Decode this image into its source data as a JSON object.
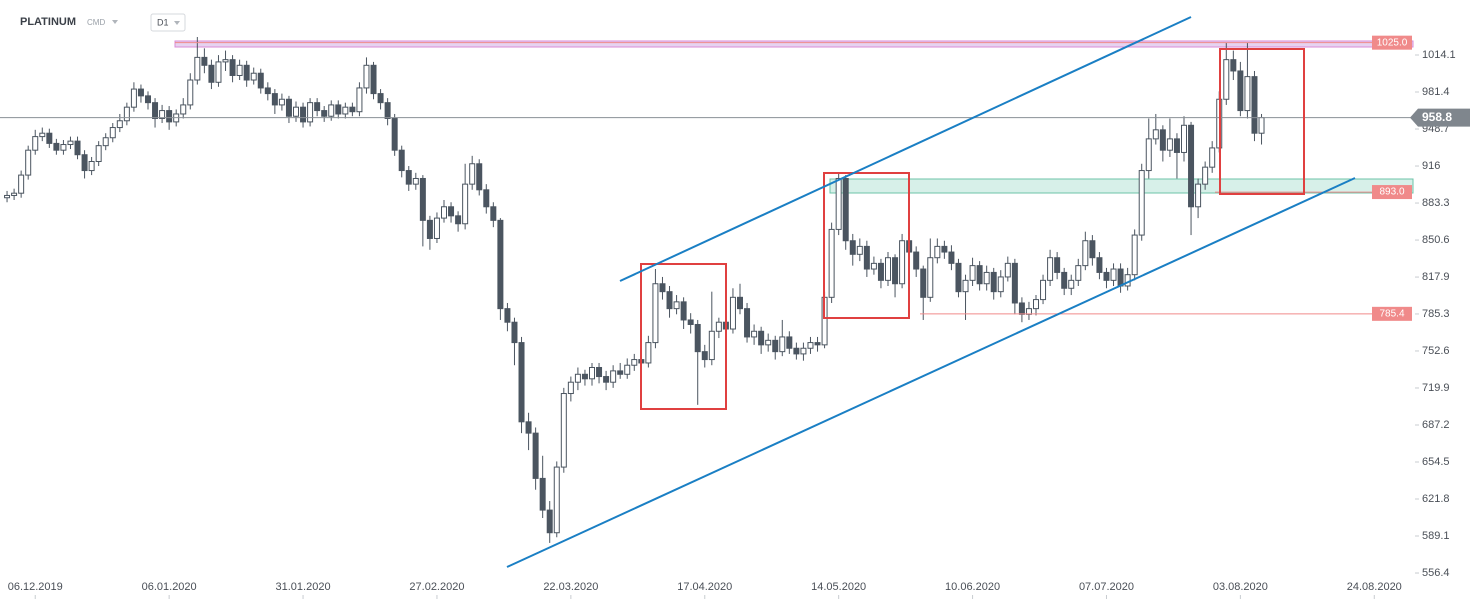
{
  "header": {
    "symbol": "PLATINUM",
    "market": "CMD",
    "interval": "D1"
  },
  "chart_data": {
    "type": "candlestick",
    "open": [
      888,
      890,
      892,
      908,
      930,
      942,
      945,
      936,
      930,
      935,
      938,
      926,
      912,
      920,
      934,
      941,
      950,
      956,
      968,
      984,
      978,
      972,
      958,
      965,
      955,
      962,
      970,
      992,
      1012,
      1005,
      990,
      1008,
      1010,
      996,
      1005,
      992,
      998,
      985,
      980,
      970,
      975,
      960,
      968,
      955,
      972,
      965,
      960,
      970,
      962,
      968,
      964,
      985,
      1005,
      980,
      972,
      958,
      930,
      912,
      900,
      905,
      868,
      852,
      870,
      880,
      872,
      865,
      900,
      918,
      895,
      880,
      868,
      790,
      778,
      760,
      690,
      680,
      640,
      612,
      592,
      650,
      715,
      725,
      732,
      728,
      738,
      730,
      725,
      735,
      732,
      740,
      745,
      742,
      760,
      812,
      805,
      790,
      796,
      780,
      776,
      752,
      745,
      770,
      778,
      772,
      800,
      790,
      765,
      770,
      758,
      762,
      752,
      765,
      755,
      750,
      755,
      760,
      758,
      800,
      860,
      905,
      850,
      838,
      845,
      825,
      830,
      815,
      835,
      812,
      850,
      840,
      825,
      800,
      835,
      845,
      840,
      830,
      805,
      815,
      828,
      812,
      822,
      805,
      818,
      830,
      795,
      785,
      790,
      798,
      815,
      835,
      822,
      808,
      815,
      828,
      850,
      835,
      822,
      815,
      825,
      810,
      820,
      855,
      912,
      940,
      948,
      930,
      940,
      928,
      952,
      880,
      900,
      915,
      932,
      975,
      1010,
      1000,
      965,
      995,
      945
    ],
    "high": [
      894,
      896,
      912,
      934,
      948,
      950,
      949,
      940,
      939,
      942,
      942,
      930,
      924,
      938,
      945,
      954,
      962,
      972,
      990,
      988,
      982,
      976,
      970,
      969,
      966,
      976,
      998,
      1030,
      1020,
      1010,
      1014,
      1018,
      1014,
      1010,
      1009,
      1003,
      1002,
      990,
      984,
      980,
      978,
      973,
      972,
      976,
      976,
      969,
      974,
      974,
      972,
      972,
      990,
      1012,
      1008,
      984,
      976,
      962,
      934,
      916,
      910,
      908,
      872,
      875,
      886,
      884,
      876,
      918,
      925,
      922,
      900,
      884,
      870,
      795,
      782,
      765,
      698,
      685,
      660,
      620,
      655,
      720,
      730,
      738,
      736,
      742,
      742,
      735,
      740,
      742,
      746,
      750,
      758,
      766,
      825,
      818,
      810,
      802,
      800,
      786,
      780,
      758,
      805,
      782,
      785,
      808,
      812,
      795,
      776,
      774,
      768,
      766,
      780,
      770,
      760,
      760,
      765,
      765,
      805,
      866,
      910,
      908,
      856,
      852,
      850,
      836,
      834,
      840,
      838,
      856,
      855,
      845,
      828,
      852,
      852,
      850,
      846,
      834,
      820,
      835,
      832,
      828,
      826,
      824,
      836,
      834,
      800,
      796,
      802,
      820,
      842,
      840,
      826,
      820,
      834,
      858,
      855,
      840,
      826,
      830,
      830,
      826,
      860,
      918,
      958,
      962,
      952,
      958,
      945,
      960,
      955,
      905,
      920,
      938,
      982,
      1025,
      1018,
      1008,
      1025,
      1000,
      962
    ],
    "low": [
      884,
      886,
      888,
      904,
      926,
      938,
      932,
      926,
      926,
      931,
      922,
      905,
      908,
      916,
      930,
      937,
      946,
      952,
      964,
      972,
      966,
      950,
      954,
      948,
      951,
      958,
      966,
      988,
      998,
      984,
      986,
      1000,
      990,
      992,
      986,
      988,
      980,
      974,
      962,
      965,
      954,
      955,
      950,
      951,
      960,
      955,
      956,
      958,
      958,
      960,
      960,
      980,
      975,
      966,
      952,
      925,
      906,
      894,
      895,
      845,
      842,
      848,
      866,
      866,
      858,
      860,
      895,
      890,
      874,
      862,
      780,
      770,
      740,
      680,
      665,
      630,
      605,
      583,
      588,
      645,
      708,
      718,
      722,
      722,
      724,
      718,
      720,
      728,
      728,
      735,
      738,
      738,
      755,
      798,
      782,
      785,
      772,
      768,
      705,
      738,
      740,
      764,
      766,
      768,
      785,
      760,
      758,
      750,
      752,
      745,
      748,
      750,
      745,
      744,
      750,
      752,
      755,
      795,
      855,
      842,
      828,
      832,
      818,
      820,
      808,
      810,
      800,
      808,
      834,
      818,
      780,
      796,
      830,
      834,
      824,
      800,
      780,
      810,
      806,
      806,
      798,
      800,
      814,
      785,
      778,
      780,
      784,
      794,
      810,
      816,
      802,
      802,
      810,
      824,
      828,
      816,
      808,
      810,
      804,
      806,
      815,
      850,
      905,
      935,
      920,
      924,
      905,
      920,
      855,
      870,
      895,
      910,
      928,
      970,
      992,
      960,
      958,
      938,
      935
    ],
    "close": [
      890,
      892,
      908,
      930,
      942,
      945,
      936,
      930,
      935,
      938,
      926,
      912,
      920,
      934,
      941,
      950,
      956,
      968,
      984,
      978,
      972,
      958,
      965,
      955,
      962,
      970,
      992,
      1012,
      1005,
      990,
      1008,
      1010,
      996,
      1005,
      992,
      998,
      985,
      980,
      970,
      975,
      960,
      968,
      955,
      972,
      965,
      960,
      970,
      962,
      968,
      964,
      985,
      1005,
      980,
      972,
      958,
      930,
      912,
      900,
      905,
      868,
      852,
      870,
      880,
      872,
      865,
      900,
      918,
      895,
      880,
      868,
      790,
      778,
      760,
      690,
      680,
      640,
      612,
      592,
      650,
      715,
      725,
      732,
      728,
      738,
      730,
      725,
      735,
      732,
      740,
      745,
      742,
      760,
      812,
      805,
      790,
      796,
      780,
      776,
      752,
      745,
      770,
      778,
      772,
      800,
      790,
      765,
      770,
      758,
      762,
      752,
      765,
      755,
      750,
      755,
      760,
      758,
      800,
      860,
      905,
      850,
      838,
      845,
      825,
      830,
      815,
      835,
      812,
      850,
      840,
      825,
      800,
      835,
      845,
      840,
      830,
      805,
      815,
      828,
      812,
      822,
      805,
      818,
      830,
      795,
      785,
      790,
      798,
      815,
      835,
      822,
      808,
      815,
      828,
      850,
      835,
      822,
      815,
      825,
      810,
      820,
      855,
      912,
      940,
      948,
      930,
      940,
      928,
      952,
      880,
      900,
      915,
      932,
      975,
      1010,
      1000,
      965,
      995,
      945,
      958.8
    ],
    "up_color": "#ffffff",
    "down_color": "#4b5560",
    "outline_color": "#4b5560",
    "xlim": [
      -1,
      198.5
    ],
    "xticks": [
      {
        "value": 4,
        "label": "06.12.2019"
      },
      {
        "value": 23,
        "label": "06.01.2020"
      },
      {
        "value": 42,
        "label": "31.01.2020"
      },
      {
        "value": 61,
        "label": "27.02.2020"
      },
      {
        "value": 80,
        "label": "22.03.2020"
      },
      {
        "value": 99,
        "label": "17.04.2020"
      },
      {
        "value": 118,
        "label": "14.05.2020"
      },
      {
        "value": 137,
        "label": "10.06.2020"
      },
      {
        "value": 156,
        "label": "07.07.2020"
      },
      {
        "value": 175,
        "label": "03.08.2020"
      },
      {
        "value": 194,
        "label": "24.08.2020"
      }
    ],
    "ylim": [
      541.4,
      1062.7
    ],
    "yticks": [
      556.4,
      589.1,
      621.8,
      654.5,
      687.2,
      719.9,
      752.6,
      785.3,
      817.9,
      850.6,
      883.3,
      916,
      948.7,
      981.4,
      1014.1
    ],
    "grid": false,
    "levels": [
      {
        "value": 1025,
        "label": "1025.0",
        "color": "#f08a8a"
      },
      {
        "value": 893,
        "label": "893.0",
        "color": "#f08a8a"
      },
      {
        "value": 785.4,
        "label": "785.4",
        "color": "#f08a8a"
      }
    ],
    "current_price": 958.8
  }
}
